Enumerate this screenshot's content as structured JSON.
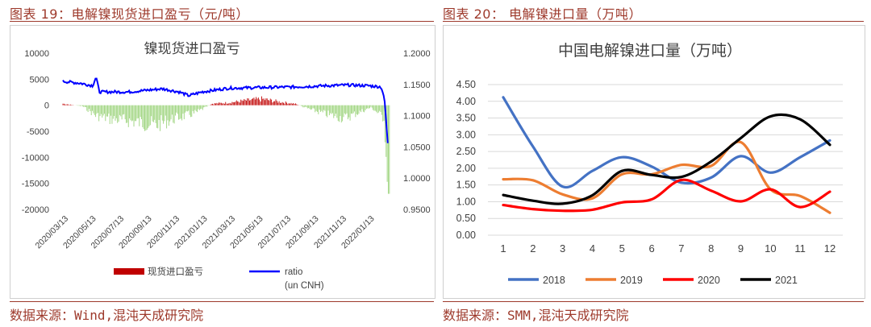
{
  "figures": [
    {
      "title": "图表 19：电解镍现货进口盈亏（元/吨）",
      "source": "数据来源：Wind,混沌天成研究院"
    },
    {
      "title": "图表 20：  电解镍进口量（万吨）",
      "source": "数据来源：SMM,混沌天成研究院"
    }
  ],
  "chart_data": [
    {
      "type": "line",
      "title": "镍现货进口盈亏",
      "x_ticks": [
        "2020/03/13",
        "2020/05/13",
        "2020/07/13",
        "2020/09/13",
        "2020/11/13",
        "2021/01/13",
        "2021/03/13",
        "2021/05/13",
        "2021/07/13",
        "2021/09/13",
        "2021/11/13",
        "2022/01/13"
      ],
      "y_left_ticks": [
        "10000",
        "5000",
        "0",
        "-5000",
        "-10000",
        "-15000",
        "-20000"
      ],
      "y_left_range": [
        -20000,
        10000
      ],
      "y_right_ticks": [
        "1.2000",
        "1.1500",
        "1.1000",
        "1.0500",
        "1.0000",
        "0.9500"
      ],
      "y_right_range": [
        0.95,
        1.2
      ],
      "series": [
        {
          "name": "现货进口盈亏",
          "kind": "bar",
          "axis": "left",
          "color": "#c00000",
          "approx_profile": [
            [
              0,
              300
            ],
            [
              6,
              -200
            ],
            [
              10,
              -2000
            ],
            [
              14,
              -2600
            ],
            [
              20,
              -3000
            ],
            [
              28,
              -3800
            ],
            [
              34,
              -2500
            ],
            [
              40,
              -1500
            ],
            [
              45,
              300
            ],
            [
              50,
              500
            ],
            [
              55,
              900
            ],
            [
              60,
              1200
            ],
            [
              66,
              600
            ],
            [
              70,
              300
            ],
            [
              75,
              -900
            ],
            [
              80,
              -1800
            ],
            [
              85,
              -2500
            ],
            [
              90,
              -1200
            ],
            [
              93,
              -400
            ],
            [
              97,
              -2500
            ],
            [
              98,
              -17000
            ]
          ]
        },
        {
          "name": "ratio",
          "kind": "line",
          "axis": "right",
          "color": "#0000ff",
          "approx_profile": [
            [
              0,
              1.155
            ],
            [
              5,
              1.152
            ],
            [
              9,
              1.148
            ],
            [
              10,
              1.162
            ],
            [
              11,
              1.138
            ],
            [
              20,
              1.138
            ],
            [
              30,
              1.143
            ],
            [
              35,
              1.138
            ],
            [
              38,
              1.132
            ],
            [
              42,
              1.138
            ],
            [
              50,
              1.144
            ],
            [
              60,
              1.145
            ],
            [
              70,
              1.146
            ],
            [
              80,
              1.148
            ],
            [
              86,
              1.149
            ],
            [
              92,
              1.148
            ],
            [
              96,
              1.146
            ],
            [
              97,
              1.128
            ],
            [
              98,
              1.056
            ]
          ]
        }
      ],
      "legend": [
        {
          "label": "现货进口盈亏",
          "color": "#c00000"
        },
        {
          "label": "ratio",
          "sublabel": "(un CNH)",
          "color": "#0000ff"
        }
      ]
    },
    {
      "type": "line",
      "title": "中国电解镍进口量（万吨）",
      "x": [
        "1",
        "2",
        "3",
        "4",
        "5",
        "6",
        "7",
        "8",
        "9",
        "10",
        "11",
        "12"
      ],
      "y_ticks": [
        "0.00",
        "0.50",
        "1.00",
        "1.50",
        "2.00",
        "2.50",
        "3.00",
        "3.50",
        "4.00",
        "4.50"
      ],
      "ylim": [
        0,
        4.5
      ],
      "series": [
        {
          "name": "2018",
          "color": "#4472c4",
          "values": [
            4.12,
            2.65,
            1.45,
            1.92,
            2.33,
            2.05,
            1.57,
            1.72,
            2.36,
            1.87,
            2.33,
            2.83
          ]
        },
        {
          "name": "2019",
          "color": "#ed7d31",
          "values": [
            1.67,
            1.64,
            1.22,
            1.1,
            1.82,
            1.82,
            2.1,
            2.07,
            2.78,
            1.37,
            1.17,
            0.67
          ]
        },
        {
          "name": "2020",
          "color": "#ff0000",
          "values": [
            0.9,
            0.78,
            0.73,
            0.76,
            0.98,
            1.07,
            1.65,
            1.33,
            1.01,
            1.37,
            0.84,
            1.3
          ]
        },
        {
          "name": "2021",
          "color": "#000000",
          "values": [
            1.2,
            1.03,
            0.94,
            1.19,
            1.92,
            1.8,
            1.74,
            2.2,
            2.9,
            3.55,
            3.46,
            2.7
          ]
        }
      ]
    }
  ]
}
